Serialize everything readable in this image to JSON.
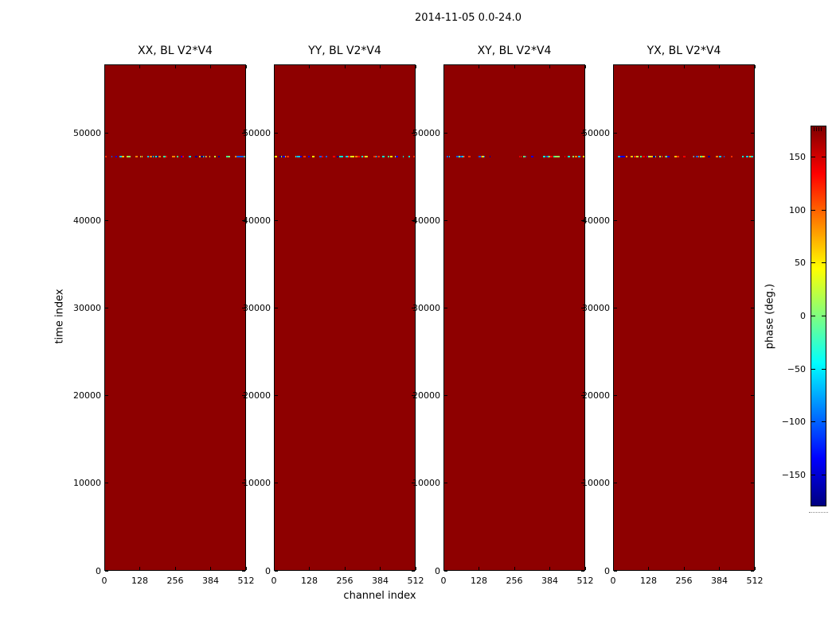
{
  "figure": {
    "title": "2014-11-05 0.0-24.0",
    "background": "#ffffff"
  },
  "chart_data": {
    "type": "heatmap",
    "panels": [
      {
        "title": "XX, BL V2*V4"
      },
      {
        "title": "YY, BL V2*V4"
      },
      {
        "title": "XY, BL V2*V4"
      },
      {
        "title": "YX, BL V2*V4"
      }
    ],
    "x_axis": {
      "label": "channel index",
      "min": 0,
      "max": 512,
      "ticks": [
        0,
        128,
        256,
        384,
        512
      ]
    },
    "y_axis": {
      "label": "time index",
      "min": 0,
      "max": 57900,
      "ticks": [
        0,
        10000,
        20000,
        30000,
        40000,
        50000
      ]
    },
    "colorbar": {
      "label": "phase (deg.)",
      "min": -180,
      "max": 180,
      "ticks": [
        150,
        100,
        50,
        0,
        -50,
        -100,
        -150
      ],
      "colormap": "jet",
      "jet_stops": [
        "#800000",
        "#ff0000",
        "#ffff00",
        "#00ffff",
        "#0000ff",
        "#000080"
      ],
      "jet_stop_percents": [
        0,
        12.5,
        37.5,
        62.5,
        87.5,
        100
      ]
    },
    "fill_phase_deg": 180,
    "fill_color": "#8e0000",
    "noise_row": {
      "time_index": 47500,
      "description": "single corrupted time row: random phases spanning the full -180 to 180 deg range across all channels, identical row in all four panels",
      "colors": [
        "#000090",
        "#0000ff",
        "#0060ff",
        "#00c8ff",
        "#00ffd0",
        "#40ff90",
        "#90ff60",
        "#d0ff30",
        "#ffff00",
        "#ffc000",
        "#ff8000",
        "#ff3000",
        "#ff0000"
      ]
    }
  }
}
